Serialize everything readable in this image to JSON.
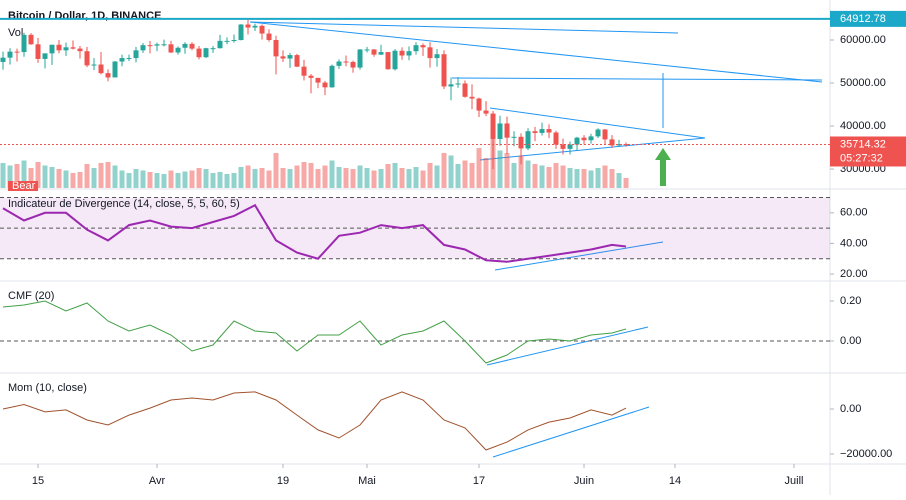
{
  "chart_data": [
    {
      "type": "candlestick",
      "title": "Bitcoin / Dollar, 1D, BINANCE",
      "volume_label": "Vol",
      "signal_label": "Bear",
      "up_color": "#26a69a",
      "down_color": "#ef5350",
      "ylim": [
        25600,
        69300
      ],
      "yticks": [
        {
          "value": 60000,
          "label": "60000.00"
        },
        {
          "value": 50000,
          "label": "50000.00"
        },
        {
          "value": 40000,
          "label": "40000.00"
        },
        {
          "value": 30000,
          "label": "30000.00"
        }
      ],
      "xlim": [
        -0.43,
        118.14
      ],
      "xticks": [
        {
          "value": 5,
          "label": "15"
        },
        {
          "value": 22,
          "label": "Avr"
        },
        {
          "value": 40,
          "label": "19"
        },
        {
          "value": 52,
          "label": "Mai"
        },
        {
          "value": 68,
          "label": "17"
        },
        {
          "value": 83,
          "label": "Juin"
        },
        {
          "value": 96,
          "label": "14"
        },
        {
          "value": 113,
          "label": "Juill"
        }
      ],
      "alert_level": 64912.78,
      "countdown": "05:27:32",
      "ohlc": [
        [
          54900,
          57300,
          53100,
          55900
        ],
        [
          55900,
          58100,
          54300,
          57300
        ],
        [
          57300,
          58000,
          55000,
          57200
        ],
        [
          57200,
          61700,
          56100,
          61200
        ],
        [
          61200,
          61600,
          58900,
          59000
        ],
        [
          59000,
          60500,
          54700,
          55600
        ],
        [
          55600,
          56900,
          53400,
          56900
        ],
        [
          56900,
          58900,
          54200,
          58900
        ],
        [
          58900,
          60000,
          56900,
          57600
        ],
        [
          57600,
          59400,
          56300,
          58300
        ],
        [
          58300,
          59900,
          57800,
          58000
        ],
        [
          58000,
          58600,
          55700,
          57400
        ],
        [
          57400,
          58400,
          53700,
          54100
        ],
        [
          54100,
          55800,
          53000,
          54300
        ],
        [
          54300,
          57200,
          52000,
          52300
        ],
        [
          52300,
          53200,
          50400,
          51300
        ],
        [
          51300,
          55100,
          51300,
          55000
        ],
        [
          55000,
          56600,
          53900,
          55800
        ],
        [
          55800,
          56600,
          55100,
          55800
        ],
        [
          55800,
          58400,
          54800,
          57600
        ],
        [
          57600,
          59300,
          57000,
          58800
        ],
        [
          58800,
          59800,
          56900,
          58700
        ],
        [
          58700,
          59400,
          57400,
          59000
        ],
        [
          59000,
          60100,
          58500,
          59000
        ],
        [
          59000,
          59800,
          57000,
          57100
        ],
        [
          57100,
          58500,
          56600,
          58200
        ],
        [
          58200,
          59500,
          56800,
          59100
        ],
        [
          59100,
          59500,
          57600,
          58000
        ],
        [
          58000,
          58600,
          55500,
          56000
        ],
        [
          56000,
          58200,
          55800,
          58100
        ],
        [
          58100,
          58600,
          57000,
          58100
        ],
        [
          58100,
          61200,
          58000,
          59800
        ],
        [
          59800,
          60600,
          59000,
          59800
        ],
        [
          59800,
          61300,
          59400,
          60000
        ],
        [
          60000,
          63700,
          59900,
          63600
        ],
        [
          63600,
          64900,
          61300,
          62900
        ],
        [
          62900,
          63800,
          62100,
          63300
        ],
        [
          63300,
          63600,
          60100,
          61500
        ],
        [
          61500,
          62500,
          59600,
          60000
        ],
        [
          60000,
          61000,
          52000,
          56200
        ],
        [
          56200,
          57600,
          54900,
          55700
        ],
        [
          55700,
          57000,
          53500,
          56500
        ],
        [
          56500,
          56800,
          53700,
          53800
        ],
        [
          53800,
          55400,
          50600,
          51700
        ],
        [
          51700,
          52100,
          47600,
          51200
        ],
        [
          51200,
          51200,
          48800,
          50100
        ],
        [
          50100,
          50500,
          47200,
          49000
        ],
        [
          49000,
          54300,
          48900,
          54000
        ],
        [
          54000,
          55500,
          53300,
          55000
        ],
        [
          55000,
          56400,
          53900,
          54900
        ],
        [
          54900,
          55200,
          52400,
          53600
        ],
        [
          53600,
          57900,
          53100,
          57800
        ],
        [
          57800,
          58400,
          57100,
          57800
        ],
        [
          57800,
          57900,
          56100,
          56600
        ],
        [
          56600,
          58900,
          56500,
          57200
        ],
        [
          57200,
          57200,
          53100,
          53200
        ],
        [
          53200,
          57900,
          52900,
          57500
        ],
        [
          57500,
          58300,
          55400,
          56400
        ],
        [
          56400,
          58500,
          55300,
          57400
        ],
        [
          57400,
          59500,
          56600,
          58800
        ],
        [
          58800,
          59200,
          56300,
          58300
        ],
        [
          58300,
          59500,
          53600,
          55800
        ],
        [
          55800,
          57900,
          53800,
          56700
        ],
        [
          56700,
          57600,
          48600,
          49200
        ],
        [
          49200,
          51300,
          46000,
          49700
        ],
        [
          49700,
          51400,
          48900,
          49900
        ],
        [
          49900,
          50600,
          46600,
          46800
        ],
        [
          46800,
          49700,
          43900,
          46400
        ],
        [
          46400,
          46600,
          42100,
          43600
        ],
        [
          43600,
          45800,
          42300,
          42900
        ],
        [
          42900,
          43500,
          30000,
          37000
        ],
        [
          37000,
          42400,
          35400,
          40600
        ],
        [
          40600,
          42200,
          33500,
          37300
        ],
        [
          37300,
          38800,
          35300,
          37500
        ],
        [
          37500,
          38300,
          31100,
          34800
        ],
        [
          34800,
          39500,
          34400,
          38800
        ],
        [
          38800,
          39800,
          36500,
          38400
        ],
        [
          38400,
          40800,
          37800,
          39300
        ],
        [
          39300,
          40400,
          37200,
          38500
        ],
        [
          38500,
          38900,
          34700,
          35700
        ],
        [
          35700,
          37100,
          33400,
          34700
        ],
        [
          34700,
          36400,
          33400,
          35700
        ],
        [
          35700,
          37500,
          34300,
          37300
        ],
        [
          37300,
          37900,
          35700,
          36700
        ],
        [
          36700,
          38200,
          35900,
          37600
        ],
        [
          37600,
          39500,
          37200,
          39200
        ],
        [
          39200,
          39300,
          35600,
          36900
        ],
        [
          36900,
          37900,
          34900,
          35500
        ],
        [
          35500,
          36800,
          35300,
          35800
        ],
        [
          35800,
          36200,
          35200,
          35714.32
        ]
      ],
      "volume": [
        50,
        45,
        48,
        55,
        40,
        52,
        45,
        42,
        38,
        35,
        30,
        32,
        48,
        40,
        50,
        52,
        45,
        35,
        30,
        38,
        35,
        32,
        30,
        28,
        35,
        30,
        33,
        35,
        40,
        38,
        30,
        32,
        28,
        30,
        42,
        45,
        38,
        40,
        35,
        70,
        40,
        38,
        45,
        52,
        50,
        38,
        45,
        55,
        42,
        40,
        38,
        45,
        40,
        35,
        38,
        48,
        50,
        40,
        38,
        42,
        35,
        50,
        45,
        70,
        65,
        48,
        55,
        50,
        80,
        60,
        112,
        75,
        70,
        50,
        65,
        55,
        48,
        45,
        42,
        50,
        45,
        40,
        38,
        38,
        35,
        40,
        45,
        38,
        30,
        20
      ]
    },
    {
      "type": "line",
      "title": "Indicateur de Divergence (14, close, 5, 5, 60, 5)",
      "xlim": [
        -0.43,
        118.14
      ],
      "ylim": [
        16.1,
        74.9
      ],
      "yticks": [
        {
          "value": 60,
          "label": "60.00"
        },
        {
          "value": 40,
          "label": "40.00"
        },
        {
          "value": 20,
          "label": "20.00"
        }
      ],
      "band": [
        30,
        70
      ],
      "levels": [
        70,
        50,
        30
      ],
      "x": [
        0,
        3,
        6,
        9,
        12,
        15,
        18,
        21,
        24,
        27,
        30,
        33,
        36,
        39,
        42,
        45,
        48,
        51,
        54,
        57,
        60,
        63,
        66,
        69,
        72,
        75,
        78,
        81,
        84,
        87,
        89
      ],
      "series": [
        {
          "color": "#9c27b0",
          "values": [
            63,
            55,
            60,
            60,
            49,
            42,
            52,
            55,
            51,
            50,
            54,
            58,
            65,
            42,
            34,
            30,
            45,
            47,
            52,
            50,
            52,
            39,
            36,
            29,
            28,
            30,
            32,
            34,
            36,
            39,
            38
          ]
        }
      ]
    },
    {
      "type": "line",
      "title": "CMF (20)",
      "xlim": [
        -0.43,
        118.14
      ],
      "ylim": [
        -0.155,
        0.295
      ],
      "yticks": [
        {
          "value": 0.2,
          "label": "0.20"
        },
        {
          "value": 0,
          "label": "0.00"
        }
      ],
      "levels": [
        0
      ],
      "x": [
        0,
        3,
        6,
        9,
        12,
        15,
        18,
        21,
        24,
        27,
        30,
        33,
        36,
        39,
        42,
        45,
        48,
        51,
        54,
        57,
        60,
        63,
        66,
        69,
        72,
        75,
        78,
        81,
        84,
        87,
        89
      ],
      "series": [
        {
          "color": "#43a047",
          "values": [
            0.17,
            0.18,
            0.2,
            0.15,
            0.19,
            0.1,
            0.05,
            0.08,
            0.03,
            -0.05,
            -0.02,
            0.1,
            0.05,
            0.04,
            -0.05,
            0.03,
            0.03,
            0.1,
            -0.02,
            0.03,
            0.05,
            0.1,
            0,
            -0.11,
            -0.07,
            0,
            0.01,
            0,
            0.03,
            0.04,
            0.06
          ]
        }
      ]
    },
    {
      "type": "line",
      "title": "Mom (10, close)",
      "xlim": [
        -0.43,
        118.14
      ],
      "ylim": [
        -24000,
        15556
      ],
      "yticks": [
        {
          "value": 0,
          "label": "0.00"
        },
        {
          "value": -20000,
          "label": "−20000.00"
        }
      ],
      "x": [
        0,
        3,
        6,
        9,
        12,
        15,
        18,
        21,
        24,
        27,
        30,
        33,
        36,
        39,
        42,
        45,
        48,
        51,
        54,
        57,
        60,
        63,
        66,
        69,
        72,
        75,
        78,
        81,
        84,
        87,
        89
      ],
      "series": [
        {
          "color": "#a0522d",
          "values": [
            0,
            2000,
            -1300,
            -400,
            -4900,
            -7100,
            -2700,
            400,
            4000,
            4900,
            4000,
            7100,
            7600,
            4000,
            -2700,
            -9300,
            -12900,
            -7100,
            4000,
            7600,
            4000,
            -4900,
            -8400,
            -18200,
            -14700,
            -9300,
            -5800,
            -4000,
            -400,
            -2700,
            400
          ]
        }
      ]
    }
  ]
}
